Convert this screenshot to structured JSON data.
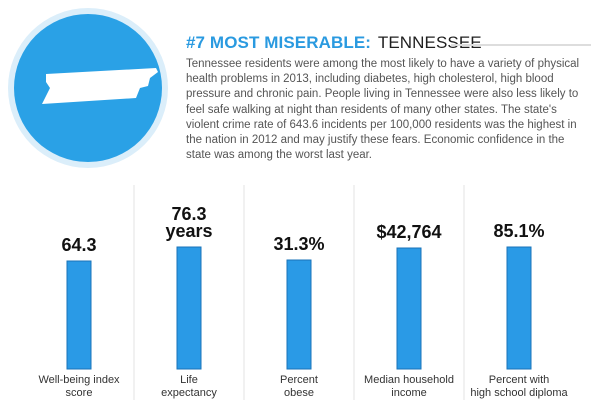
{
  "header": {
    "rank_label": "#7 MOST MISERABLE:",
    "state_name": "TENNESSEE",
    "description": "Tennessee residents were among the most likely to have a variety of physical health problems in 2013, including diabetes, high cholesterol, high blood pressure and chronic pain. People living in Tennessee were also less likely to feel safe walking at night than residents of many other states. The state's violent crime rate of 643.6 incidents per 100,000 residents was the highest in the nation in 2012 and may justify these fears. Economic confidence in the state was among the worst last year."
  },
  "colors": {
    "accent": "#2aa1e6",
    "bar_fill": "#2a9ae6",
    "bar_stroke": "#1a73b8",
    "divider": "#e3e3e3"
  },
  "icons": {
    "badge": "tennessee-map-icon"
  },
  "chart_data": {
    "type": "bar",
    "categories": [
      [
        "Well-being index",
        "score"
      ],
      [
        "Life",
        "expectancy"
      ],
      [
        "Percent",
        "obese"
      ],
      [
        "Median household",
        "income"
      ],
      [
        "Percent with",
        "high school diploma"
      ]
    ],
    "value_labels": [
      [
        "64.3"
      ],
      [
        "76.3",
        "years"
      ],
      [
        "31.3%"
      ],
      [
        "$42,764"
      ],
      [
        "85.1%"
      ]
    ],
    "values": [
      64.3,
      76.3,
      31.3,
      42764,
      85.1
    ],
    "title": "",
    "xlabel": "",
    "ylabel": "",
    "grid": false,
    "legend": "none"
  }
}
